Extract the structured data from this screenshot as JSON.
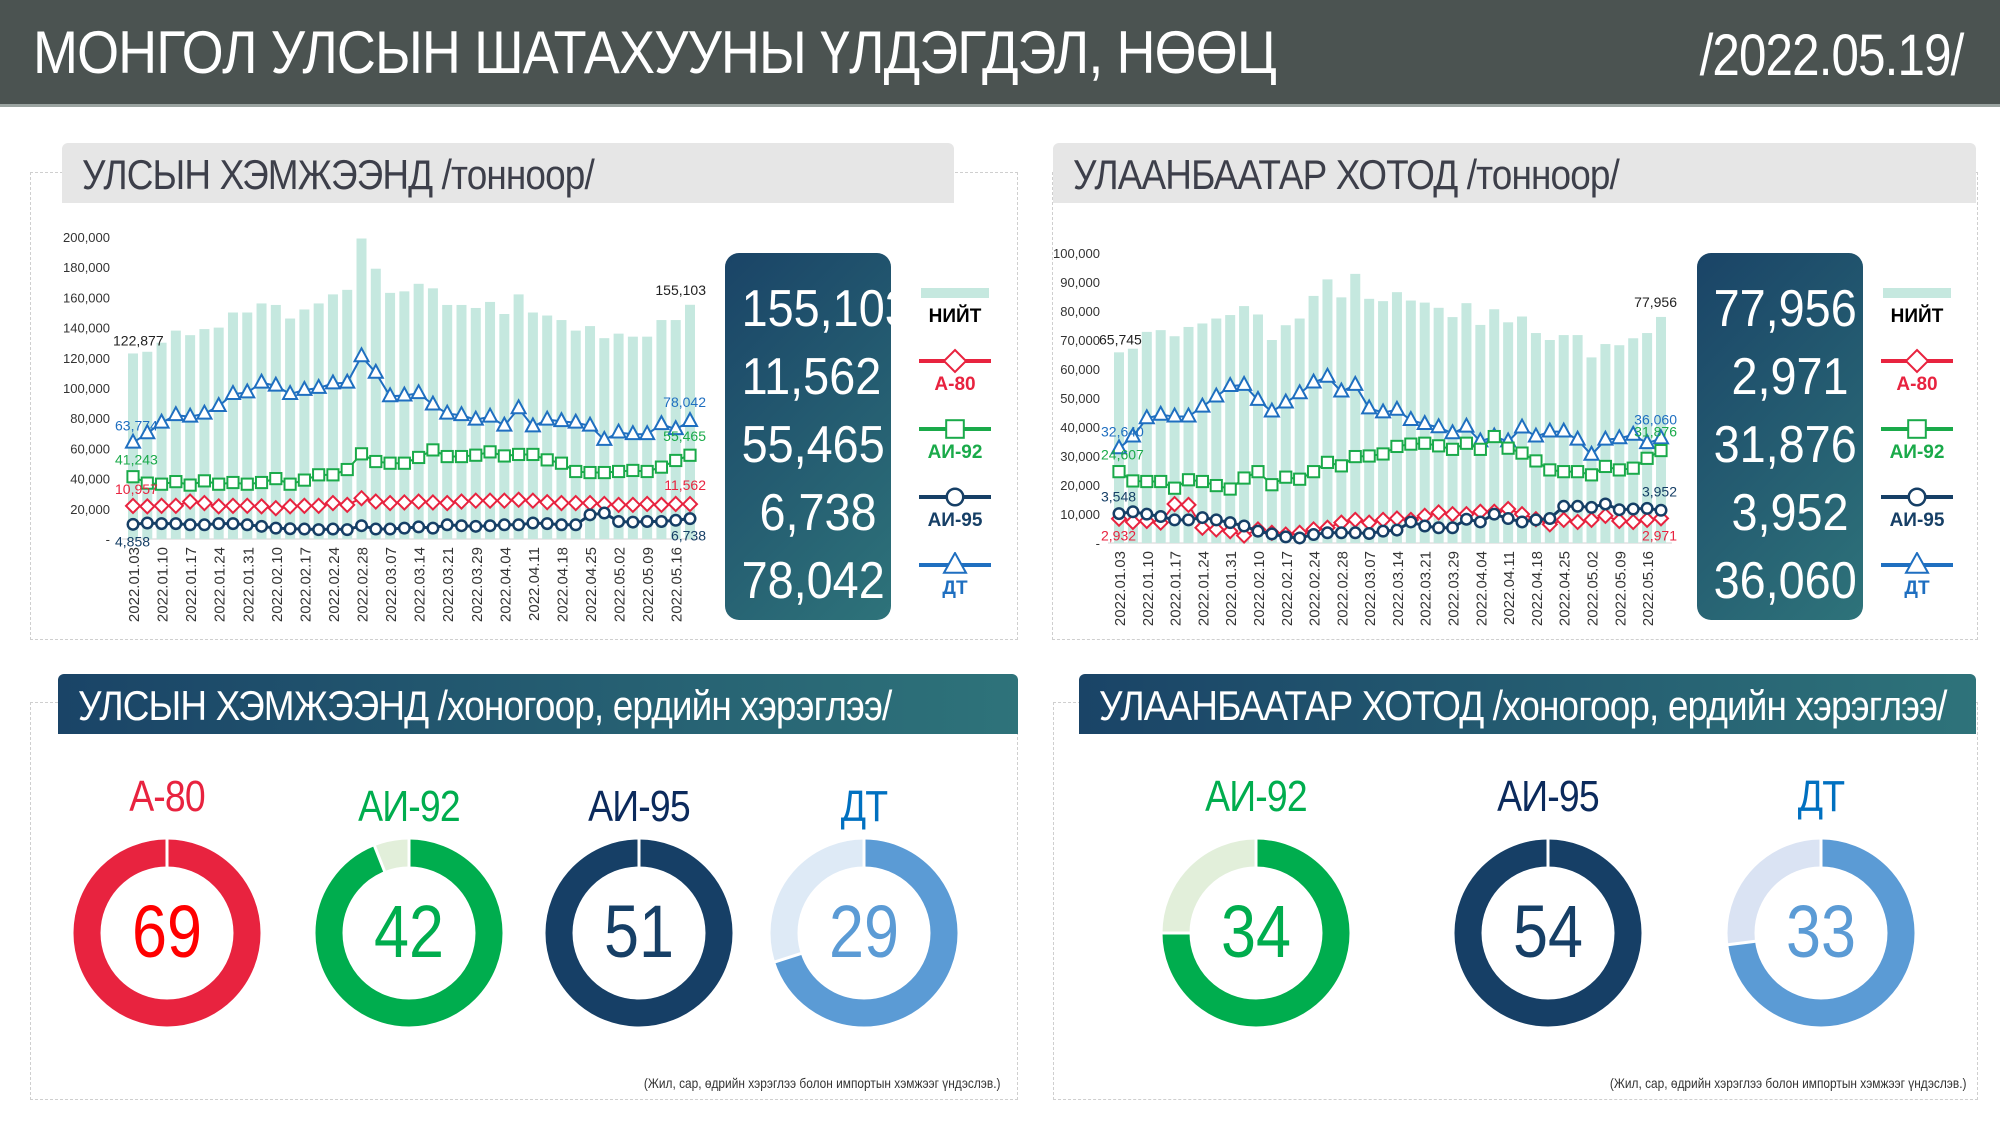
{
  "header": {
    "title": "МОНГОЛ УЛСЫН ШАТАХУУНЫ ҮЛДЭГДЭЛ, НӨӨЦ",
    "date": "/2022.05.19/"
  },
  "colors": {
    "total": "#c5e8df",
    "a80": "#e8233f",
    "ai92": "#1aaa4a",
    "ai95": "#163f66",
    "dt": "#1f6fc0",
    "dt_ring": "#5b9bd5"
  },
  "legend": [
    {
      "label": "НИЙТ",
      "icon": "bar-swatch-icon"
    },
    {
      "label": "А-80",
      "icon": "diamond-marker-icon"
    },
    {
      "label": "АИ-92",
      "icon": "square-marker-icon"
    },
    {
      "label": "АИ-95",
      "icon": "circle-marker-icon"
    },
    {
      "label": "ДТ",
      "icon": "triangle-marker-icon"
    }
  ],
  "national_tonnes": {
    "title": "УЛСЫН ХЭМЖЭЭНД /тонноор/",
    "latest": [
      "155,103",
      "11,562",
      "55,465",
      "6,738",
      "78,042"
    ]
  },
  "ub_tonnes": {
    "title": "УЛААНБААТАР ХОТОД /тонноор/",
    "latest": [
      "77,956",
      "2,971",
      "31,876",
      "3,952",
      "36,060"
    ]
  },
  "national_days": {
    "title": "УЛСЫН ХЭМЖЭЭНД /хоногоор, ердийн хэрэглээ/",
    "items": [
      {
        "label": "А-80",
        "days": "69",
        "fill": 1.0,
        "color": "#e8233f",
        "light": "#f6c7cf",
        "text": "#ff0000",
        "label_color": "#e8233f"
      },
      {
        "label": "АИ-92",
        "days": "42",
        "fill": 0.94,
        "color": "#00ad4e",
        "light": "#e2efda",
        "text": "#00ad4e",
        "label_color": "#00ad4e"
      },
      {
        "label": "АИ-95",
        "days": "51",
        "fill": 1.0,
        "color": "#163f66",
        "light": "#cfd9e4",
        "text": "#163f66",
        "label_color": "#0b2a5c"
      },
      {
        "label": "ДТ",
        "days": "29",
        "fill": 0.7,
        "color": "#5b9bd5",
        "light": "#deeaf6",
        "text": "#5b9bd5",
        "label_color": "#0070c0"
      }
    ],
    "footnote": "(Жил, сар, өдрийн хэрэглээ болон импортын хэмжээг үндэслэв.)"
  },
  "ub_days": {
    "title": "УЛААНБААТАР ХОТОД /хоногоор, ердийн хэрэглээ/",
    "items": [
      {
        "label": "АИ-92",
        "days": "34",
        "fill": 0.75,
        "color": "#00ad4e",
        "light": "#e2efda",
        "text": "#00ad4e",
        "label_color": "#00ad4e"
      },
      {
        "label": "АИ-95",
        "days": "54",
        "fill": 1.0,
        "color": "#163f66",
        "light": "#cfd9e4",
        "text": "#163f66",
        "label_color": "#0b2a5c"
      },
      {
        "label": "ДТ",
        "days": "33",
        "fill": 0.73,
        "color": "#5b9bd5",
        "light": "#dae3f3",
        "text": "#5b9bd5",
        "label_color": "#0070c0"
      }
    ],
    "footnote": "(Жил, сар, өдрийн хэрэглээ болон импортын хэмжээг үндэслэв.)"
  },
  "chart_data": [
    {
      "type": "bar+line",
      "title": "УЛСЫН ХЭМЖЭЭНД /тонноор/",
      "ylim": [
        0,
        200000
      ],
      "y2lim": [
        0,
        100000
      ],
      "grid": false,
      "ytick_labels": [
        "-",
        "20,000",
        "40,000",
        "60,000",
        "80,000",
        "100,000",
        "120,000",
        "140,000",
        "160,000",
        "180,000",
        "200,000"
      ],
      "xtick_labels": [
        "2022.01.03",
        "2022.01.10",
        "2022.01.17",
        "2022.01.24",
        "2022.01.31",
        "2022.02.10",
        "2022.02.17",
        "2022.02.24",
        "2022.02.28",
        "2022.03.07",
        "2022.03.14",
        "2022.03.21",
        "2022.03.29",
        "2022.04.04",
        "2022.04.11",
        "2022.04.18",
        "2022.04.25",
        "2022.05.02",
        "2022.05.09",
        "2022.05.16"
      ],
      "series": [
        {
          "name": "НИЙТ",
          "kind": "bar",
          "axis": "y",
          "first_label": "122,877",
          "last_label": "155,103",
          "values": [
            122877,
            124000,
            130000,
            138000,
            135000,
            139000,
            140000,
            150000,
            150000,
            156000,
            155000,
            146000,
            152000,
            156000,
            162000,
            165000,
            199000,
            179000,
            163000,
            164000,
            169000,
            166000,
            155000,
            155000,
            153000,
            157000,
            149000,
            162000,
            150000,
            148000,
            145000,
            138000,
            141000,
            133000,
            136000,
            134000,
            134000,
            145000,
            145000,
            155103
          ]
        },
        {
          "name": "ДТ",
          "kind": "line",
          "marker": "triangle",
          "axis": "y",
          "first_label": "63,774",
          "last_label": "78,042",
          "values": [
            63774,
            70000,
            77000,
            82000,
            81000,
            83000,
            88000,
            96000,
            97000,
            103500,
            101500,
            96000,
            98700,
            100000,
            103000,
            103500,
            121000,
            110000,
            94500,
            95000,
            96500,
            89000,
            83000,
            82000,
            79000,
            81000,
            75000,
            86500,
            74500,
            79000,
            78000,
            77000,
            75000,
            65600,
            70500,
            69400,
            69400,
            76000,
            72700,
            78042
          ]
        },
        {
          "name": "АИ-92",
          "kind": "line",
          "marker": "square",
          "axis": "y",
          "first_label": "41,243",
          "last_label": "55,465",
          "values": [
            41243,
            37000,
            36300,
            38000,
            35700,
            38500,
            36300,
            37400,
            36300,
            37400,
            40000,
            36300,
            39000,
            42500,
            42500,
            46000,
            56400,
            51300,
            50200,
            50200,
            54000,
            59000,
            54600,
            54600,
            55500,
            57700,
            55000,
            56000,
            56000,
            52400,
            50200,
            44700,
            44000,
            44000,
            44700,
            45400,
            44700,
            47600,
            52000,
            55465
          ]
        },
        {
          "name": "А-80",
          "kind": "line",
          "marker": "diamond",
          "axis": "y2",
          "first_label": "10,957",
          "last_label": "11,562",
          "values": [
            10957,
            10800,
            11000,
            11000,
            12400,
            11900,
            10800,
            11000,
            11000,
            10800,
            10200,
            10800,
            11000,
            11000,
            11900,
            11300,
            13500,
            12400,
            11900,
            12100,
            12400,
            12100,
            11900,
            12400,
            12700,
            12700,
            12700,
            13000,
            12700,
            12200,
            11900,
            11900,
            11900,
            11600,
            11300,
            11300,
            11600,
            11300,
            11600,
            11562
          ]
        },
        {
          "name": "АИ-95",
          "kind": "line",
          "marker": "circle",
          "axis": "y2",
          "first_label": "4,858",
          "last_label": "6,738",
          "values": [
            4858,
            5300,
            5100,
            5100,
            4700,
            4700,
            5100,
            5100,
            4700,
            4200,
            3600,
            3400,
            3300,
            3100,
            3300,
            3100,
            4400,
            3300,
            3300,
            3600,
            4000,
            3600,
            4700,
            4400,
            4200,
            4400,
            4700,
            4700,
            5300,
            5100,
            4700,
            4700,
            8000,
            8600,
            5800,
            5600,
            5800,
            5800,
            6200,
            6738
          ]
        }
      ]
    },
    {
      "type": "bar+line",
      "title": "УЛААНБААТАР ХОТОД /тонноор/",
      "ylim": [
        0,
        100000
      ],
      "y2lim": [
        0,
        35000
      ],
      "grid": false,
      "ytick_labels": [
        "-",
        "10,000",
        "20,000",
        "30,000",
        "40,000",
        "50,000",
        "60,000",
        "70,000",
        "80,000",
        "90,000",
        "100,000"
      ],
      "xtick_labels": [
        "2022.01.03",
        "2022.01.10",
        "2022.01.17",
        "2022.01.24",
        "2022.01.31",
        "2022.02.10",
        "2022.02.17",
        "2022.02.24",
        "2022.02.28",
        "2022.03.07",
        "2022.03.14",
        "2022.03.21",
        "2022.03.29",
        "2022.04.04",
        "2022.04.11",
        "2022.04.18",
        "2022.04.25",
        "2022.05.02",
        "2022.05.09",
        "2022.05.16"
      ],
      "series": [
        {
          "name": "НИЙТ",
          "kind": "bar",
          "axis": "y",
          "first_label": "65,745",
          "last_label": "77,956",
          "values": [
            65745,
            67000,
            72800,
            73400,
            71300,
            74500,
            75700,
            77400,
            78600,
            81700,
            78800,
            70000,
            75100,
            77400,
            85200,
            90900,
            84700,
            92800,
            84200,
            83400,
            86500,
            83600,
            82900,
            81100,
            77900,
            82700,
            75200,
            80600,
            76100,
            78100,
            72400,
            70000,
            71700,
            71700,
            64000,
            68600,
            68200,
            70600,
            72400,
            77956
          ]
        },
        {
          "name": "ДТ",
          "kind": "line",
          "marker": "triangle",
          "axis": "y",
          "first_label": "32,640",
          "last_label": "36,060",
          "values": [
            32640,
            36700,
            43000,
            44200,
            43600,
            43600,
            47000,
            50500,
            54100,
            54500,
            49300,
            45300,
            48400,
            51600,
            55300,
            57300,
            52200,
            54500,
            46400,
            45000,
            45900,
            42400,
            41000,
            39900,
            37800,
            40100,
            35000,
            36700,
            35000,
            39800,
            36700,
            38400,
            38400,
            35600,
            30400,
            35600,
            36100,
            37300,
            34400,
            36060
          ]
        },
        {
          "name": "АИ-92",
          "kind": "line",
          "marker": "square",
          "axis": "y",
          "first_label": "24,607",
          "last_label": "31,876",
          "values": [
            24607,
            21400,
            21200,
            21200,
            18900,
            21800,
            21200,
            19800,
            18600,
            22400,
            24600,
            20100,
            22700,
            22000,
            24600,
            27800,
            26600,
            29800,
            30000,
            30700,
            33300,
            34100,
            34400,
            33500,
            32300,
            34400,
            32300,
            36700,
            32700,
            31000,
            28300,
            25200,
            24600,
            24600,
            23500,
            26400,
            25200,
            25800,
            29200,
            31876
          ]
        },
        {
          "name": "А-80",
          "kind": "line",
          "marker": "diamond",
          "axis": "y2",
          "first_label": "2,932",
          "last_label": "2,971",
          "values": [
            2932,
            2540,
            2660,
            2460,
            4700,
            4600,
            1840,
            1640,
            1430,
            900,
            1640,
            1230,
            1020,
            1230,
            1640,
            1840,
            2460,
            2790,
            2460,
            2790,
            2950,
            2790,
            3280,
            3690,
            3480,
            3480,
            3770,
            3770,
            4100,
            3480,
            2870,
            2250,
            2790,
            2540,
            2790,
            3280,
            2660,
            2540,
            2790,
            2971
          ]
        },
        {
          "name": "АИ-95",
          "kind": "line",
          "marker": "circle",
          "axis": "y2",
          "first_label": "3,548",
          "last_label": "3,952",
          "values": [
            3548,
            3770,
            3480,
            3200,
            2790,
            2790,
            3070,
            2790,
            2460,
            2050,
            1430,
            1100,
            740,
            610,
            1020,
            1230,
            1230,
            1230,
            1150,
            1430,
            1560,
            2540,
            2050,
            1840,
            1840,
            2870,
            2540,
            3480,
            2950,
            2540,
            2790,
            2950,
            4430,
            4430,
            4300,
            4710,
            4020,
            4100,
            4180,
            3952
          ]
        }
      ]
    }
  ]
}
